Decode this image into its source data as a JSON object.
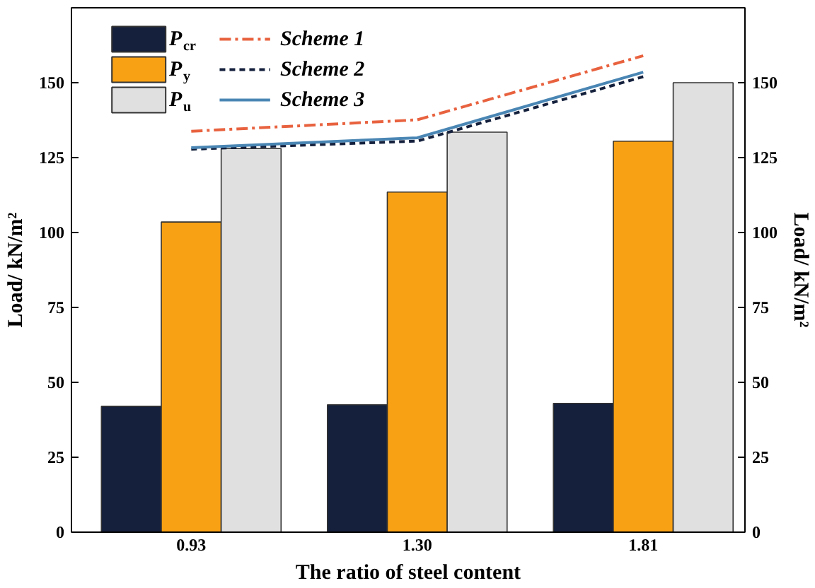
{
  "chart_data": {
    "type": "bar",
    "xlabel": "The ratio of steel content",
    "ylabel": "Load/ kN/m²",
    "categories": [
      "0.93",
      "1.30",
      "1.81"
    ],
    "ylim": [
      0,
      175
    ],
    "yticks": [
      0,
      25,
      50,
      75,
      100,
      125,
      150
    ],
    "y2lim": [
      0,
      175
    ],
    "y2ticks": [
      0,
      25,
      50,
      75,
      100,
      125,
      150
    ],
    "series": [
      {
        "name": "P$_{cr}$",
        "color": "#14203c",
        "values": [
          42,
          42.5,
          43
        ]
      },
      {
        "name": "P$_{y}$",
        "color": "#f9a114",
        "values": [
          103.5,
          113.5,
          130.5
        ]
      },
      {
        "name": "P$_{u}$",
        "color": "#e0e0e0",
        "values": [
          128,
          133.5,
          150
        ]
      },
      {
        "name": "Scheme 1",
        "type": "line",
        "line_style": "dashdot",
        "color": "#e8623f",
        "values": [
          133.8,
          137.6,
          159
        ]
      },
      {
        "name": "Scheme 2",
        "type": "line",
        "line_style": "dashed",
        "color": "#14203c",
        "values": [
          127.8,
          130.5,
          152
        ]
      },
      {
        "name": "Scheme 3",
        "type": "line",
        "line_style": "solid",
        "color": "#4a86b4",
        "values": [
          128.3,
          131.6,
          153.5
        ]
      }
    ],
    "grid": false,
    "legend": "top left",
    "marker": "none"
  }
}
